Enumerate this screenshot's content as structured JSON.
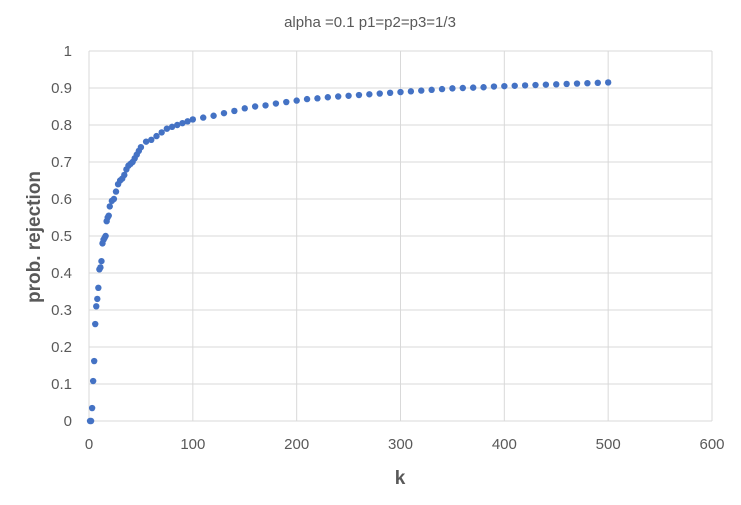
{
  "chart_data": {
    "type": "scatter",
    "title": "alpha =0.1 p1=p2=p3=1/3",
    "xlabel": "k",
    "ylabel": "prob. rejection",
    "xlim": [
      0,
      600
    ],
    "ylim": [
      0,
      1
    ],
    "x_ticks": [
      "0",
      "100",
      "200",
      "300",
      "400",
      "500",
      "600"
    ],
    "y_ticks": [
      "0",
      "0.1",
      "0.2",
      "0.3",
      "0.4",
      "0.5",
      "0.6",
      "0.7",
      "0.8",
      "0.9",
      "1"
    ],
    "grid": true,
    "legend": "none",
    "marker_color": "#4472C4",
    "series": [
      {
        "x": [
          1,
          2,
          3,
          4,
          5,
          6,
          7,
          8,
          9,
          10,
          11,
          12,
          13,
          14,
          15,
          16,
          17,
          18,
          19,
          20,
          22,
          24,
          26,
          28,
          30,
          32,
          34,
          36,
          38,
          40,
          42,
          44,
          46,
          48,
          50,
          55,
          60,
          65,
          70,
          75,
          80,
          85,
          90,
          95,
          100,
          110,
          120,
          130,
          140,
          150,
          160,
          170,
          180,
          190,
          200,
          210,
          220,
          230,
          240,
          250,
          260,
          270,
          280,
          290,
          300,
          310,
          320,
          330,
          340,
          350,
          360,
          370,
          380,
          390,
          400,
          410,
          420,
          430,
          440,
          450,
          460,
          470,
          480,
          490,
          500
        ],
        "y": [
          0.0,
          0.0,
          0.035,
          0.108,
          0.162,
          0.262,
          0.31,
          0.33,
          0.36,
          0.41,
          0.415,
          0.432,
          0.48,
          0.49,
          0.495,
          0.5,
          0.54,
          0.55,
          0.555,
          0.58,
          0.595,
          0.6,
          0.62,
          0.64,
          0.65,
          0.655,
          0.665,
          0.68,
          0.69,
          0.695,
          0.7,
          0.71,
          0.72,
          0.73,
          0.74,
          0.755,
          0.76,
          0.77,
          0.78,
          0.79,
          0.795,
          0.8,
          0.805,
          0.81,
          0.815,
          0.82,
          0.825,
          0.832,
          0.838,
          0.845,
          0.85,
          0.853,
          0.858,
          0.862,
          0.866,
          0.87,
          0.872,
          0.875,
          0.877,
          0.879,
          0.881,
          0.883,
          0.885,
          0.887,
          0.889,
          0.891,
          0.893,
          0.895,
          0.897,
          0.899,
          0.9,
          0.901,
          0.902,
          0.904,
          0.905,
          0.906,
          0.907,
          0.908,
          0.909,
          0.91,
          0.911,
          0.912,
          0.913,
          0.914,
          0.915
        ]
      }
    ]
  }
}
